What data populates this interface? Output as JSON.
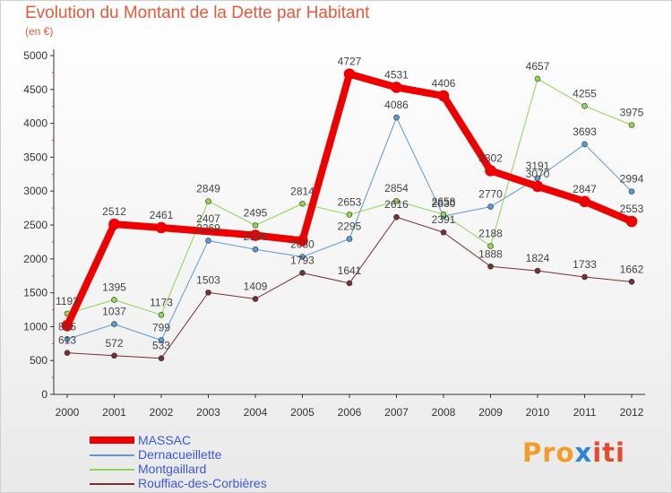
{
  "title": "Evolution du Montant de la Dette par Habitant",
  "unit": "(en €)",
  "logo": "Proxiti",
  "chart_data": {
    "type": "line",
    "title": "Evolution du Montant de la Dette par Habitant",
    "ylabel": "(en €)",
    "xlabel": "",
    "x": [
      "2000",
      "2001",
      "2002",
      "2003",
      "2004",
      "2005",
      "2006",
      "2007",
      "2008",
      "2009",
      "2010",
      "2011",
      "2012"
    ],
    "ylim": [
      0,
      5000
    ],
    "yticks": [
      0,
      500,
      1000,
      1500,
      2000,
      2500,
      3000,
      3500,
      4000,
      4500,
      5000
    ],
    "grid": false,
    "legend_position": "bottom-left",
    "series": [
      {
        "name": "MASSAC",
        "color": "#ee0000",
        "width": 8,
        "markers": true,
        "values": [
          1015,
          2512,
          2461,
          null,
          2348,
          2269,
          4727,
          4531,
          4406,
          3302,
          3070,
          2847,
          2553
        ]
      },
      {
        "name": "Dernacueillette",
        "color": "#5b9bd5",
        "width": 1,
        "markers": true,
        "values": [
          815,
          1037,
          799,
          2269,
          2140,
          2030,
          2295,
          4086,
          2630,
          2770,
          3191,
          3693,
          2994
        ]
      },
      {
        "name": "Montgaillard",
        "color": "#8ed650",
        "width": 1,
        "markers": true,
        "values": [
          1192,
          1395,
          1173,
          2849,
          2495,
          2814,
          2653,
          2854,
          2658,
          2188,
          4657,
          4255,
          3975
        ]
      },
      {
        "name": "Rouffiac-des-Corbières",
        "color": "#7a2e2e",
        "width": 1,
        "markers": true,
        "values": [
          613,
          572,
          533,
          1503,
          1409,
          1793,
          1641,
          2616,
          2391,
          1888,
          1824,
          1733,
          1662
        ]
      }
    ],
    "point_labels": [
      [
        null,
        2512,
        2461,
        2407,
        null,
        null,
        4727,
        4531,
        4406,
        3302,
        3070,
        2847,
        2553
      ],
      [
        815,
        1037,
        799,
        2269,
        2140,
        2030,
        2295,
        4086,
        2630,
        2770,
        3191,
        3693,
        2994
      ],
      [
        1192,
        1395,
        1173,
        2849,
        2495,
        2814,
        2653,
        2854,
        2658,
        2188,
        4657,
        4255,
        3975
      ],
      [
        613,
        572,
        533,
        1503,
        1409,
        1793,
        1641,
        2616,
        2391,
        1888,
        1824,
        1733,
        1662
      ]
    ]
  }
}
